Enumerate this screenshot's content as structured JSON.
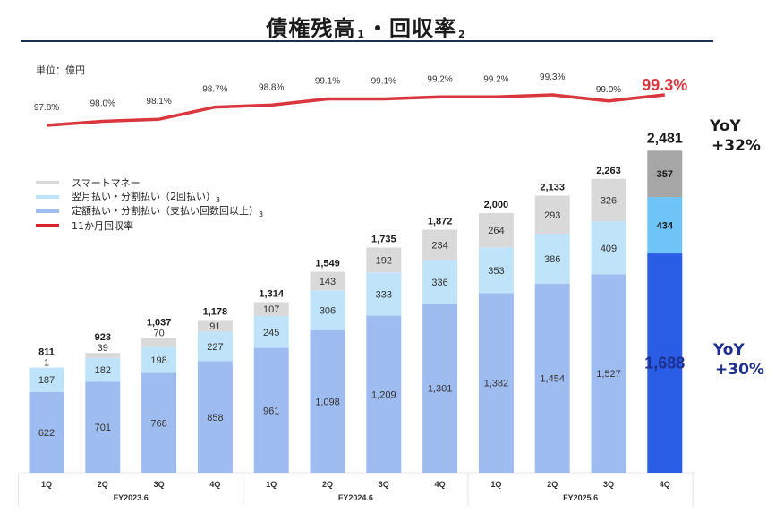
{
  "header": {
    "title_part1": "債権残高",
    "note1": "1",
    "separator": "・",
    "title_part2": "回収率",
    "note2": "2"
  },
  "unit_label": "単位：億円",
  "legend": [
    {
      "label": "スマートマネー",
      "note": "",
      "color": "#d9d9d9"
    },
    {
      "label": "翌月払い・分割払い（2回払い）",
      "note": "3",
      "color": "#bfe3f8"
    },
    {
      "label": "定額払い・分割払い（支払い回数回以上）",
      "note": "3",
      "color": "#9fbcf1"
    },
    {
      "label": "11か月回収率",
      "note": "",
      "color": "#d9232d"
    }
  ],
  "yoy": {
    "total": {
      "label": "YoY",
      "value": "+32%"
    },
    "installment": {
      "label": "YoY",
      "value": "+30%"
    }
  },
  "chart_data": {
    "type": "bar",
    "stacked": true,
    "title": "債権残高・回収率",
    "ylabel": "億円",
    "categories": [
      "1Q",
      "2Q",
      "3Q",
      "4Q",
      "1Q",
      "2Q",
      "3Q",
      "4Q",
      "1Q",
      "2Q",
      "3Q",
      "4Q"
    ],
    "groups": [
      {
        "label": "FY2023.6",
        "span": 4
      },
      {
        "label": "FY2024.6",
        "span": 4
      },
      {
        "label": "FY2025.6",
        "span": 4
      }
    ],
    "series": [
      {
        "name": "定額払い・分割払い（支払い回数回以上）",
        "values": [
          622,
          701,
          768,
          858,
          961,
          1098,
          1209,
          1301,
          1382,
          1454,
          1527,
          1688
        ],
        "labels": [
          "622",
          "701",
          "768",
          "858",
          "961",
          "1,098",
          "1,209",
          "1,301",
          "1,382",
          "1,454",
          "1,527",
          "1,688"
        ],
        "color": "#9fbcf1",
        "highlight_color": "#2a5de6"
      },
      {
        "name": "翌月払い・分割払い（2回払い）",
        "values": [
          187,
          182,
          198,
          227,
          245,
          306,
          333,
          336,
          353,
          386,
          409,
          434
        ],
        "labels": [
          "187",
          "182",
          "198",
          "227",
          "245",
          "306",
          "333",
          "336",
          "353",
          "386",
          "409",
          "434"
        ],
        "color": "#bfe3f8",
        "highlight_color": "#6ec4f7"
      },
      {
        "name": "スマートマネー",
        "values": [
          1,
          39,
          70,
          91,
          107,
          143,
          192,
          234,
          264,
          293,
          326,
          357
        ],
        "labels": [
          "1",
          "39",
          "70",
          "91",
          "107",
          "143",
          "192",
          "234",
          "264",
          "293",
          "326",
          "357"
        ],
        "color": "#d9d9d9",
        "highlight_color": "#a6a6a6"
      }
    ],
    "totals": [
      "811",
      "923",
      "1,037",
      "1,178",
      "1,314",
      "1,549",
      "1,735",
      "1,872",
      "2,000",
      "2,133",
      "2,263",
      "2,481"
    ],
    "line_series": {
      "name": "11か月回収率",
      "values": [
        97.8,
        98.0,
        98.1,
        98.7,
        98.8,
        99.1,
        99.1,
        99.2,
        99.2,
        99.3,
        99.0,
        99.3
      ],
      "labels": [
        "97.8%",
        "98.0%",
        "98.1%",
        "98.7%",
        "98.8%",
        "99.1%",
        "99.1%",
        "99.2%",
        "99.2%",
        "99.3%",
        "99.0%",
        "99.3%"
      ],
      "color": "#d9363e"
    },
    "ylim": [
      0,
      2500
    ],
    "legend_position": "top-left",
    "grid": false
  }
}
